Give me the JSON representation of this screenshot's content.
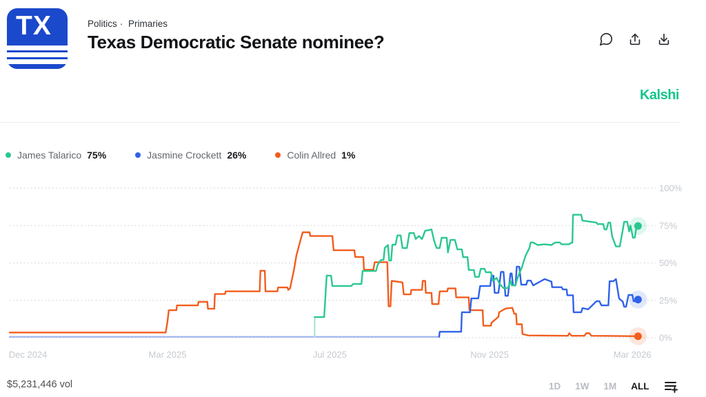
{
  "colors": {
    "logo_blue": "#1b49cc",
    "brand_green": "#13c58b",
    "talarico_green": "#2ac88f",
    "crockett_blue": "#2f62e9",
    "allred_orange": "#f25d1d",
    "axis_text": "#c5c9cf",
    "grid": "#d9dbde"
  },
  "header": {
    "logo_text": "TX",
    "breadcrumb": {
      "category": "Politics",
      "separator": "·",
      "subcategory": "Primaries"
    },
    "title": "Texas Democratic Senate nominee?",
    "action_icons": [
      "comment-bubble",
      "share-arrow-up-from-tray",
      "download-arrow-down-to-tray"
    ]
  },
  "brand": {
    "name": "Kalshi"
  },
  "legend": [
    {
      "name": "James Talarico",
      "value": "75%",
      "color": "#2ac88f"
    },
    {
      "name": "Jasmine Crockett",
      "value": "26%",
      "color": "#2f62e9"
    },
    {
      "name": "Colin Allred",
      "value": "1%",
      "color": "#f25d1d"
    }
  ],
  "chart_data": {
    "type": "line",
    "unit": "percent chance",
    "y_axis": {
      "range": [
        0,
        100
      ],
      "ticks": [
        0,
        25,
        50,
        75,
        100
      ],
      "tick_suffix": "%",
      "labels_side": "right",
      "grid": "dotted"
    },
    "x_axis": {
      "note": "pos = percent of plot width, timeline Dec 2024 to Mar 2026",
      "ticks": [
        {
          "label": "Dec 2024",
          "pos": 2.9
        },
        {
          "label": "Mar 2025",
          "pos": 25.0
        },
        {
          "label": "Jul 2025",
          "pos": 50.7
        },
        {
          "label": "Nov 2025",
          "pos": 76.0
        },
        {
          "label": "Mar 2026",
          "pos": 98.6
        }
      ]
    },
    "series": [
      {
        "name": "Colin Allred",
        "color": "#f25d1d",
        "current": "1%",
        "points": [
          [
            0,
            3.5
          ],
          [
            24.7,
            3.5
          ],
          [
            25,
            11
          ],
          [
            25.2,
            18.4
          ],
          [
            26.4,
            18.4
          ],
          [
            26.5,
            21.6
          ],
          [
            29.8,
            21.6
          ],
          [
            29.9,
            24
          ],
          [
            31.3,
            24
          ],
          [
            31.4,
            19.4
          ],
          [
            32.4,
            19.4
          ],
          [
            32.5,
            29.2
          ],
          [
            34.1,
            29.2
          ],
          [
            34.2,
            31
          ],
          [
            39.6,
            31
          ],
          [
            39.7,
            44.8
          ],
          [
            40.4,
            44.8
          ],
          [
            40.5,
            31
          ],
          [
            42.4,
            31
          ],
          [
            42.5,
            33.6
          ],
          [
            44,
            33.6
          ],
          [
            44.1,
            32
          ],
          [
            44.4,
            33
          ],
          [
            45,
            45
          ],
          [
            45.4,
            55
          ],
          [
            46.1,
            66
          ],
          [
            46.4,
            70.5
          ],
          [
            47.5,
            70.5
          ],
          [
            47.6,
            68
          ],
          [
            51.1,
            68
          ],
          [
            51.3,
            58.5
          ],
          [
            54.6,
            58.5
          ],
          [
            54.7,
            54
          ],
          [
            56,
            54
          ],
          [
            56.1,
            45.5
          ],
          [
            57.6,
            45.5
          ],
          [
            57.8,
            50.5
          ],
          [
            59.8,
            50.5
          ],
          [
            60,
            21
          ],
          [
            60.3,
            21
          ],
          [
            60.5,
            38
          ],
          [
            62.2,
            37
          ],
          [
            62.4,
            29
          ],
          [
            63.5,
            29
          ],
          [
            63.6,
            32
          ],
          [
            65.3,
            32
          ],
          [
            65.4,
            38
          ],
          [
            65.8,
            38
          ],
          [
            65.9,
            30
          ],
          [
            66.8,
            30
          ],
          [
            66.9,
            22.5
          ],
          [
            67.9,
            22.5
          ],
          [
            68.1,
            31
          ],
          [
            69.3,
            31
          ],
          [
            69.4,
            33
          ],
          [
            70.6,
            33
          ],
          [
            70.7,
            27
          ],
          [
            72.7,
            27
          ],
          [
            72.8,
            18.4
          ],
          [
            74.9,
            18.4
          ],
          [
            75,
            8
          ],
          [
            76.2,
            8
          ],
          [
            76.3,
            10
          ],
          [
            77.4,
            14
          ],
          [
            77.5,
            17
          ],
          [
            78.5,
            19.5
          ],
          [
            79.6,
            20
          ],
          [
            79.9,
            16
          ],
          [
            80.2,
            16
          ],
          [
            80.3,
            9
          ],
          [
            81.1,
            9
          ],
          [
            81.2,
            2.5
          ],
          [
            82.1,
            1.5
          ],
          [
            88.4,
            1.3
          ],
          [
            88.6,
            3
          ],
          [
            89,
            1.3
          ],
          [
            91,
            1.3
          ],
          [
            91.3,
            3
          ],
          [
            91.8,
            3
          ],
          [
            92.1,
            1.3
          ],
          [
            99.5,
            1
          ]
        ]
      },
      {
        "name": "Jasmine Crockett",
        "color": "#2f62e9",
        "current": "26%",
        "pre_color": "#9db3f2",
        "pre_points": [
          [
            0,
            0.6
          ],
          [
            68,
            0.6
          ]
        ],
        "points": [
          [
            68,
            0.6
          ],
          [
            68.1,
            4
          ],
          [
            71.5,
            4
          ],
          [
            71.6,
            17
          ],
          [
            72.9,
            17
          ],
          [
            73.1,
            26.3
          ],
          [
            74.2,
            26.3
          ],
          [
            74.5,
            34.6
          ],
          [
            76.1,
            34.6
          ],
          [
            76.3,
            41.5
          ],
          [
            76.6,
            41.5
          ],
          [
            76.8,
            30
          ],
          [
            77.4,
            30
          ],
          [
            77.8,
            44
          ],
          [
            78.2,
            44
          ],
          [
            78.5,
            28
          ],
          [
            78.9,
            28
          ],
          [
            79.3,
            43
          ],
          [
            79.5,
            43
          ],
          [
            79.7,
            35
          ],
          [
            80.1,
            35
          ],
          [
            80.3,
            47.5
          ],
          [
            80.7,
            47.5
          ],
          [
            81,
            35.5
          ],
          [
            81.8,
            35.5
          ],
          [
            82,
            38.2
          ],
          [
            82.5,
            38.2
          ],
          [
            82.9,
            35
          ],
          [
            84.2,
            38
          ],
          [
            84.7,
            39.2
          ],
          [
            85.8,
            37.5
          ],
          [
            85.9,
            33.8
          ],
          [
            87.4,
            33.8
          ],
          [
            87.6,
            32.3
          ],
          [
            88.2,
            32.3
          ],
          [
            88.3,
            28.4
          ],
          [
            89.2,
            28.4
          ],
          [
            89.3,
            17
          ],
          [
            90.5,
            17
          ],
          [
            90.7,
            19.8
          ],
          [
            91.6,
            19
          ],
          [
            92.9,
            24.4
          ],
          [
            93.4,
            24.4
          ],
          [
            93.7,
            21.6
          ],
          [
            94.8,
            21.6
          ],
          [
            95,
            37.8
          ],
          [
            95.6,
            37.8
          ],
          [
            96,
            39.2
          ],
          [
            96.5,
            26.3
          ],
          [
            97.1,
            24
          ],
          [
            97.3,
            20.7
          ],
          [
            97.6,
            20.7
          ],
          [
            98,
            28.6
          ],
          [
            98.6,
            28.6
          ],
          [
            98.8,
            24.4
          ],
          [
            99.1,
            24.4
          ],
          [
            99.5,
            25.5
          ]
        ]
      },
      {
        "name": "James Talarico",
        "color": "#2ac88f",
        "current": "75%",
        "pre_color": "#a9e6cd",
        "pre_points": [
          [
            48.3,
            0.5
          ],
          [
            48.3,
            13.8
          ]
        ],
        "points": [
          [
            48.3,
            13.8
          ],
          [
            49.8,
            13.8
          ],
          [
            50.2,
            41.5
          ],
          [
            50.9,
            41.5
          ],
          [
            51.1,
            34.6
          ],
          [
            54.1,
            34.6
          ],
          [
            54.4,
            36
          ],
          [
            55.7,
            36
          ],
          [
            55.9,
            44.6
          ],
          [
            58,
            44.6
          ],
          [
            58.3,
            49
          ],
          [
            58.8,
            52
          ],
          [
            59.2,
            52
          ],
          [
            59.4,
            60
          ],
          [
            59.9,
            62
          ],
          [
            60.1,
            51.6
          ],
          [
            60.4,
            51.6
          ],
          [
            60.6,
            62.2
          ],
          [
            61.1,
            62.2
          ],
          [
            61.4,
            68.4
          ],
          [
            61.9,
            68.4
          ],
          [
            62.2,
            60
          ],
          [
            62.9,
            60
          ],
          [
            63.3,
            70
          ],
          [
            64,
            70
          ],
          [
            64.3,
            66
          ],
          [
            64.8,
            68
          ],
          [
            65.3,
            66
          ],
          [
            65.8,
            71.5
          ],
          [
            66.8,
            72.4
          ],
          [
            67.2,
            65
          ],
          [
            67.6,
            60
          ],
          [
            68.1,
            60
          ],
          [
            68.4,
            66.8
          ],
          [
            69.2,
            66.8
          ],
          [
            69.4,
            57
          ],
          [
            69.8,
            65.4
          ],
          [
            70.5,
            65.4
          ],
          [
            70.9,
            59.1
          ],
          [
            71.6,
            59.1
          ],
          [
            71.8,
            53.9
          ],
          [
            72.5,
            53.9
          ],
          [
            72.7,
            45.3
          ],
          [
            73.5,
            45.3
          ],
          [
            73.7,
            40.7
          ],
          [
            74.3,
            40.7
          ],
          [
            74.6,
            46.1
          ],
          [
            75.2,
            46.1
          ],
          [
            75.4,
            43.8
          ],
          [
            76.2,
            43.8
          ],
          [
            76.5,
            38
          ],
          [
            77.1,
            40
          ],
          [
            77.6,
            36
          ],
          [
            78.2,
            33.2
          ],
          [
            78.9,
            33.2
          ],
          [
            79.3,
            38
          ],
          [
            79.5,
            35
          ],
          [
            80.1,
            35
          ],
          [
            80.3,
            38.4
          ],
          [
            80.7,
            43
          ],
          [
            81.1,
            47
          ],
          [
            81.7,
            55
          ],
          [
            82.3,
            60
          ],
          [
            82.5,
            63.7
          ],
          [
            82.9,
            63.7
          ],
          [
            83.6,
            62
          ],
          [
            84.7,
            62.5
          ],
          [
            85.8,
            62
          ],
          [
            86.4,
            63.7
          ],
          [
            87.1,
            63.7
          ],
          [
            87.4,
            62.5
          ],
          [
            88.6,
            62.5
          ],
          [
            88.9,
            63.5
          ],
          [
            89.1,
            63.5
          ],
          [
            89.2,
            82.2
          ],
          [
            90.5,
            82.2
          ],
          [
            90.7,
            78.3
          ],
          [
            92.9,
            77
          ],
          [
            93.1,
            76
          ],
          [
            94,
            76
          ],
          [
            94.2,
            72.4
          ],
          [
            94.5,
            72.4
          ],
          [
            94.8,
            77
          ],
          [
            95.1,
            77
          ],
          [
            95.4,
            67.7
          ],
          [
            96,
            61
          ],
          [
            96.6,
            61
          ],
          [
            97,
            70
          ],
          [
            97.3,
            77.5
          ],
          [
            97.8,
            77.5
          ],
          [
            98.1,
            71
          ],
          [
            98.3,
            75
          ],
          [
            98.7,
            66.8
          ],
          [
            99,
            67
          ],
          [
            99.2,
            73
          ],
          [
            99.5,
            74.7
          ]
        ]
      }
    ]
  },
  "footer": {
    "volume": "$5,231,446 vol",
    "ranges": [
      "1D",
      "1W",
      "1M",
      "ALL"
    ],
    "active_range": "ALL",
    "add_icon": "add-to-list"
  }
}
